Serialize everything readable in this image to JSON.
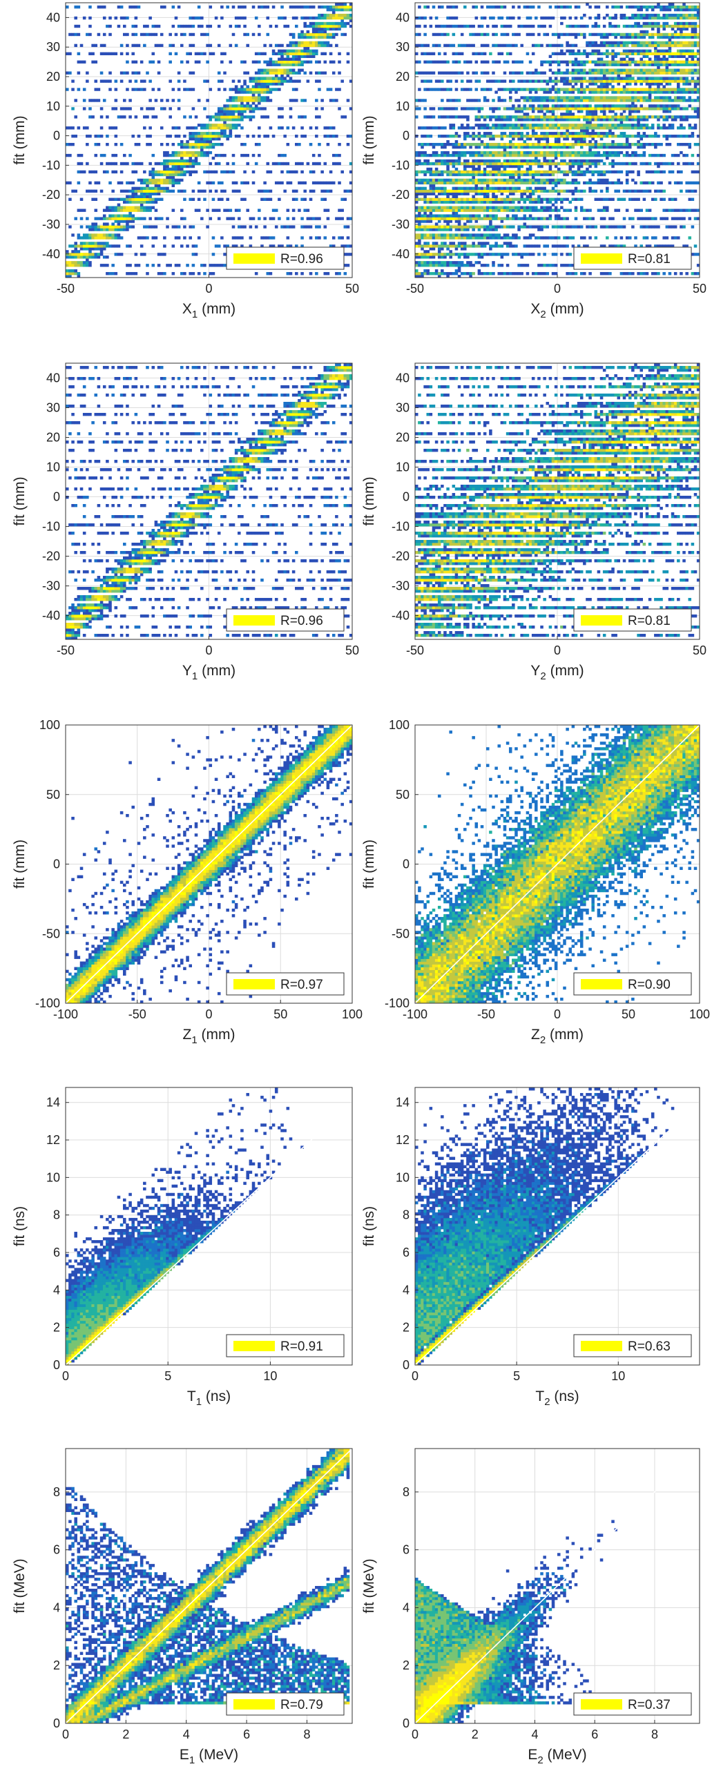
{
  "colors": {
    "colormap": [
      "#2c2f94",
      "#2b4fb8",
      "#1c73c9",
      "#1596b8",
      "#23b2a1",
      "#78c473",
      "#c4c83e",
      "#f8e51c",
      "#ffff00"
    ],
    "axis": "#333333",
    "grid": "#dcdcdc",
    "identity_line": "#ffffff",
    "legend_swatch": "#ffff00"
  },
  "chart_data": [
    {
      "type": "heatmap",
      "panel": "X1",
      "xlabel_main": "X",
      "xlabel_sub": "1",
      "xlabel_unit": " (mm)",
      "ylabel": "fit (mm)",
      "xlim": [
        -50,
        50
      ],
      "ylim": [
        -48,
        45
      ],
      "xticks": [
        -50,
        0,
        50
      ],
      "yticks": [
        -40,
        -30,
        -20,
        -10,
        0,
        10,
        20,
        30,
        40
      ],
      "xtick_labels": [
        "-50",
        "0",
        "50"
      ],
      "ytick_labels": [
        "-40",
        "-30",
        "-20",
        "-10",
        "0",
        "10",
        "20",
        "30",
        "40"
      ],
      "legend_text": "R=0.96",
      "R": 0.96,
      "grid": true,
      "legend_position": "bottom-right",
      "identity_line": false
    },
    {
      "type": "heatmap",
      "panel": "X2",
      "xlabel_main": "X",
      "xlabel_sub": "2",
      "xlabel_unit": " (mm)",
      "ylabel": "fit (mm)",
      "xlim": [
        -50,
        50
      ],
      "ylim": [
        -48,
        45
      ],
      "xticks": [
        -50,
        0,
        50
      ],
      "yticks": [
        -40,
        -30,
        -20,
        -10,
        0,
        10,
        20,
        30,
        40
      ],
      "xtick_labels": [
        "-50",
        "0",
        "50"
      ],
      "ytick_labels": [
        "-40",
        "-30",
        "-20",
        "-10",
        "0",
        "10",
        "20",
        "30",
        "40"
      ],
      "legend_text": "R=0.81",
      "R": 0.81,
      "grid": true,
      "legend_position": "bottom-right",
      "identity_line": false
    },
    {
      "type": "heatmap",
      "panel": "Y1",
      "xlabel_main": "Y",
      "xlabel_sub": "1",
      "xlabel_unit": " (mm)",
      "ylabel": "fit (mm)",
      "xlim": [
        -50,
        50
      ],
      "ylim": [
        -48,
        45
      ],
      "xticks": [
        -50,
        0,
        50
      ],
      "yticks": [
        -40,
        -30,
        -20,
        -10,
        0,
        10,
        20,
        30,
        40
      ],
      "xtick_labels": [
        "-50",
        "0",
        "50"
      ],
      "ytick_labels": [
        "-40",
        "-30",
        "-20",
        "-10",
        "0",
        "10",
        "20",
        "30",
        "40"
      ],
      "legend_text": "R=0.96",
      "R": 0.96,
      "grid": true,
      "legend_position": "bottom-right",
      "identity_line": false
    },
    {
      "type": "heatmap",
      "panel": "Y2",
      "xlabel_main": "Y",
      "xlabel_sub": "2",
      "xlabel_unit": " (mm)",
      "ylabel": "fit (mm)",
      "xlim": [
        -50,
        50
      ],
      "ylim": [
        -48,
        45
      ],
      "xticks": [
        -50,
        0,
        50
      ],
      "yticks": [
        -40,
        -30,
        -20,
        -10,
        0,
        10,
        20,
        30,
        40
      ],
      "xtick_labels": [
        "-50",
        "0",
        "50"
      ],
      "ytick_labels": [
        "-40",
        "-30",
        "-20",
        "-10",
        "0",
        "10",
        "20",
        "30",
        "40"
      ],
      "legend_text": "R=0.81",
      "R": 0.81,
      "grid": true,
      "legend_position": "bottom-right",
      "identity_line": false
    },
    {
      "type": "heatmap",
      "panel": "Z1",
      "xlabel_main": "Z",
      "xlabel_sub": "1",
      "xlabel_unit": " (mm)",
      "ylabel": "fit (mm)",
      "xlim": [
        -100,
        100
      ],
      "ylim": [
        -100,
        100
      ],
      "xticks": [
        -100,
        -50,
        0,
        50,
        100
      ],
      "yticks": [
        -100,
        -50,
        0,
        50,
        100
      ],
      "xtick_labels": [
        "-100",
        "-50",
        "0",
        "50",
        "100"
      ],
      "ytick_labels": [
        "-100",
        "-50",
        "0",
        "50",
        "100"
      ],
      "legend_text": "R=0.97",
      "R": 0.97,
      "grid": true,
      "legend_position": "bottom-right",
      "identity_line": true
    },
    {
      "type": "heatmap",
      "panel": "Z2",
      "xlabel_main": "Z",
      "xlabel_sub": "2",
      "xlabel_unit": " (mm)",
      "ylabel": "fit (mm)",
      "xlim": [
        -100,
        100
      ],
      "ylim": [
        -100,
        100
      ],
      "xticks": [
        -100,
        -50,
        0,
        50,
        100
      ],
      "yticks": [
        -100,
        -50,
        0,
        50,
        100
      ],
      "xtick_labels": [
        "-100",
        "-50",
        "0",
        "50",
        "100"
      ],
      "ytick_labels": [
        "-100",
        "-50",
        "0",
        "50",
        "100"
      ],
      "legend_text": "R=0.90",
      "R": 0.9,
      "grid": true,
      "legend_position": "bottom-right",
      "identity_line": true
    },
    {
      "type": "heatmap",
      "panel": "T1",
      "xlabel_main": "T",
      "xlabel_sub": "1",
      "xlabel_unit": " (ns)",
      "ylabel": "fit (ns)",
      "xlim": [
        0,
        14
      ],
      "ylim": [
        0,
        14.8
      ],
      "xticks": [
        0,
        5,
        10
      ],
      "yticks": [
        0,
        2,
        4,
        6,
        8,
        10,
        12,
        14
      ],
      "xtick_labels": [
        "0",
        "5",
        "10"
      ],
      "ytick_labels": [
        "0",
        "2",
        "4",
        "6",
        "8",
        "10",
        "12",
        "14"
      ],
      "legend_text": "R=0.91",
      "R": 0.91,
      "grid": true,
      "legend_position": "bottom-right",
      "identity_line": true
    },
    {
      "type": "heatmap",
      "panel": "T2",
      "xlabel_main": "T",
      "xlabel_sub": "2",
      "xlabel_unit": " (ns)",
      "ylabel": "fit (ns)",
      "xlim": [
        0,
        14
      ],
      "ylim": [
        0,
        14.8
      ],
      "xticks": [
        0,
        5,
        10
      ],
      "yticks": [
        0,
        2,
        4,
        6,
        8,
        10,
        12,
        14
      ],
      "xtick_labels": [
        "0",
        "5",
        "10"
      ],
      "ytick_labels": [
        "0",
        "2",
        "4",
        "6",
        "8",
        "10",
        "12",
        "14"
      ],
      "legend_text": "R=0.63",
      "R": 0.63,
      "grid": true,
      "legend_position": "bottom-right",
      "identity_line": true
    },
    {
      "type": "heatmap",
      "panel": "E1",
      "xlabel_main": "E",
      "xlabel_sub": "1",
      "xlabel_unit": " (MeV)",
      "ylabel": "fit (MeV)",
      "xlim": [
        0,
        9.5
      ],
      "ylim": [
        0,
        9.5
      ],
      "xticks": [
        0,
        2,
        4,
        6,
        8
      ],
      "yticks": [
        0,
        2,
        4,
        6,
        8
      ],
      "xtick_labels": [
        "0",
        "2",
        "4",
        "6",
        "8"
      ],
      "ytick_labels": [
        "0",
        "2",
        "4",
        "6",
        "8"
      ],
      "legend_text": "R=0.79",
      "R": 0.79,
      "grid": true,
      "legend_position": "bottom-right",
      "identity_line": true
    },
    {
      "type": "heatmap",
      "panel": "E2",
      "xlabel_main": "E",
      "xlabel_sub": "2",
      "xlabel_unit": " (MeV)",
      "ylabel": "fit (MeV)",
      "xlim": [
        0,
        9.5
      ],
      "ylim": [
        0,
        9.5
      ],
      "xticks": [
        0,
        2,
        4,
        6,
        8
      ],
      "yticks": [
        0,
        2,
        4,
        6,
        8
      ],
      "xtick_labels": [
        "0",
        "2",
        "4",
        "6",
        "8"
      ],
      "ytick_labels": [
        "0",
        "2",
        "4",
        "6",
        "8"
      ],
      "legend_text": "R=0.37",
      "R": 0.37,
      "grid": true,
      "legend_position": "bottom-right",
      "identity_line": true
    }
  ]
}
